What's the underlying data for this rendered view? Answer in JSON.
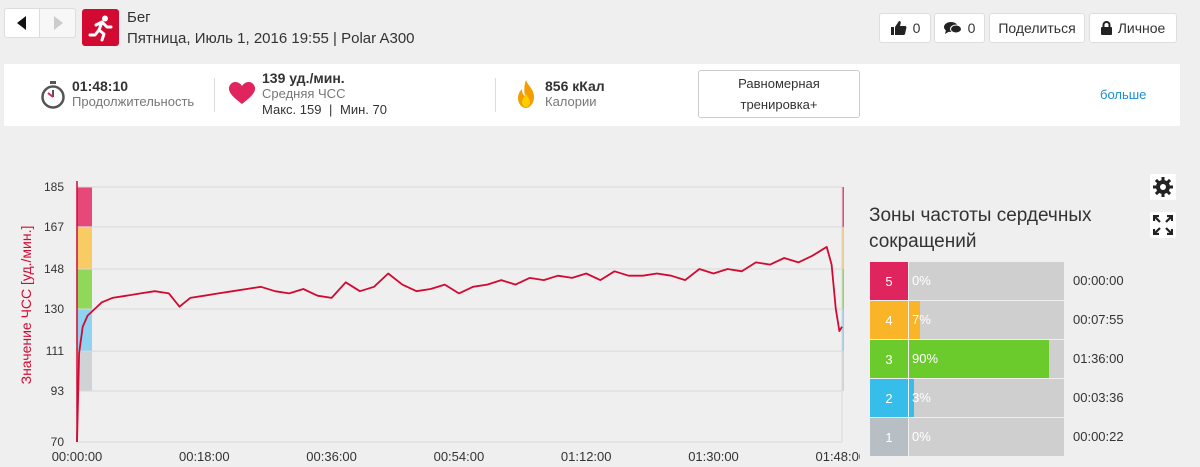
{
  "header": {
    "title": "Бег",
    "subtitle": "Пятница, Июль 1, 2016 19:55 | Polar A300",
    "likes_count": "0",
    "comments_count": "0",
    "share_label": "Поделиться",
    "privacy_label": "Личное"
  },
  "summary": {
    "duration_value": "01:48:10",
    "duration_label": "Продолжительность",
    "hr_value": "139 уд./мин.",
    "hr_label": "Средняя ЧСС",
    "hr_max": "Макс. 159",
    "hr_sep": "|",
    "hr_min": "Мин. 70",
    "calories_value": "856 кКал",
    "calories_label": "Калории",
    "training_benefit": "Равномерная тренировка+",
    "more_link": "больше"
  },
  "zones": {
    "title": "Зоны частоты сердечных сокращений",
    "items": [
      {
        "zone": "5",
        "percent": "0%",
        "fraction": 0.0,
        "time": "00:00:00",
        "color": "#e0245e"
      },
      {
        "zone": "4",
        "percent": "7%",
        "fraction": 0.07,
        "time": "00:07:55",
        "color": "#f9b428"
      },
      {
        "zone": "3",
        "percent": "90%",
        "fraction": 0.9,
        "time": "01:36:00",
        "color": "#6ccb2c"
      },
      {
        "zone": "2",
        "percent": "3%",
        "fraction": 0.03,
        "time": "00:03:36",
        "color": "#36bdea"
      },
      {
        "zone": "1",
        "percent": "0%",
        "fraction": 0.0,
        "time": "00:00:22",
        "color": "#b8bfc4"
      }
    ]
  },
  "chart_data": {
    "type": "line",
    "ylabel": "Значение ЧСС [уд./мин.]",
    "xlabel": "",
    "y_ticks": [
      "70",
      "93",
      "111",
      "130",
      "148",
      "167",
      "185"
    ],
    "y_tick_values": [
      70,
      93,
      111,
      130,
      148,
      167,
      185
    ],
    "x_ticks": [
      "00:00:00",
      "00:18:00",
      "00:36:00",
      "00:54:00",
      "01:12:00",
      "01:30:00",
      "01:48:00"
    ],
    "x_tick_minutes": [
      0,
      18,
      36,
      54,
      72,
      90,
      108
    ],
    "xlim_minutes": [
      0,
      108.17
    ],
    "ylim": [
      70,
      185
    ],
    "zone_bands": [
      {
        "from": 93,
        "to": 111,
        "color": "#cfd3d6"
      },
      {
        "from": 111,
        "to": 130,
        "color": "#8fd3f0"
      },
      {
        "from": 130,
        "to": 148,
        "color": "#8fd85a"
      },
      {
        "from": 148,
        "to": 167,
        "color": "#f9cb65"
      },
      {
        "from": 167,
        "to": 185,
        "color": "#e6487a"
      }
    ],
    "line_color": "#d20a32",
    "series": [
      {
        "x_minutes": [
          0,
          0.3,
          0.8,
          1.5,
          2.5,
          3.5,
          5,
          7,
          9,
          11,
          13,
          14.5,
          16,
          18,
          20,
          22,
          24,
          26,
          28,
          30,
          32,
          34,
          36,
          38,
          40,
          42,
          44,
          46,
          48,
          50,
          52,
          54,
          56,
          58,
          60,
          62,
          64,
          66,
          68,
          70,
          72,
          74,
          76,
          78,
          80,
          82,
          84,
          86,
          88,
          90,
          92,
          94,
          96,
          98,
          100,
          102,
          104,
          105,
          106,
          106.7,
          107.3,
          107.8,
          108.17
        ],
        "values": [
          70,
          110,
          122,
          127,
          130,
          133,
          135,
          136,
          137,
          138,
          137,
          131,
          135,
          136,
          137,
          138,
          139,
          140,
          138,
          137,
          139,
          136,
          135,
          142,
          138,
          140,
          146,
          141,
          138,
          139,
          141,
          137,
          140,
          141,
          143,
          141,
          144,
          143,
          145,
          144,
          146,
          143,
          147,
          145,
          145,
          146,
          145,
          143,
          148,
          146,
          148,
          147,
          151,
          150,
          153,
          151,
          154,
          156,
          158,
          150,
          130,
          120,
          122
        ]
      }
    ]
  }
}
